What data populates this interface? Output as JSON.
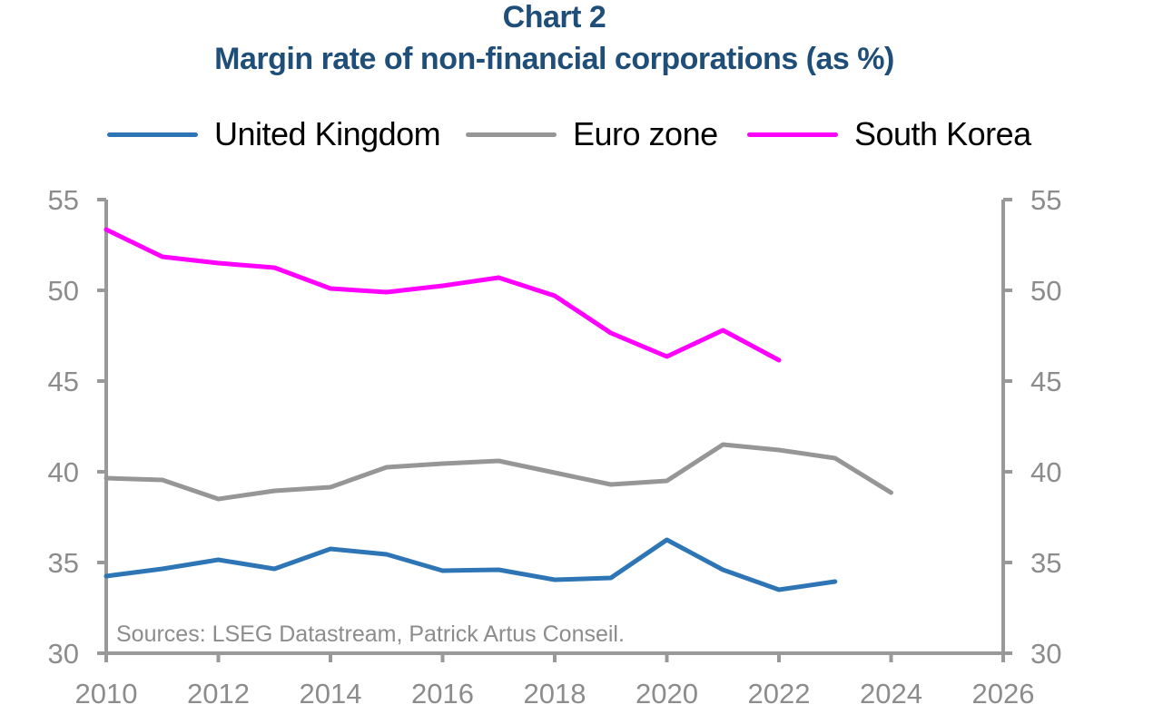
{
  "chart_data": {
    "type": "line",
    "title": "Chart 2",
    "subtitle": "Margin rate of non-financial corporations (as %)",
    "xlabel": "",
    "ylabel": "",
    "xlim": [
      2010,
      2026
    ],
    "ylim": [
      30,
      55
    ],
    "x_ticks": [
      2010,
      2012,
      2014,
      2016,
      2018,
      2020,
      2022,
      2024,
      2026
    ],
    "y_ticks": [
      30,
      35,
      40,
      45,
      50,
      55
    ],
    "y_axis_both_sides": true,
    "grid": false,
    "legend_position": "top",
    "source_note": "Sources: LSEG Datastream, Patrick Artus Conseil.",
    "series": [
      {
        "name": "United Kingdom",
        "color": "#2e75b6",
        "x": [
          2010,
          2011,
          2012,
          2013,
          2014,
          2015,
          2016,
          2017,
          2018,
          2019,
          2020,
          2021,
          2022,
          2023
        ],
        "values": [
          34.25,
          34.65,
          35.15,
          34.65,
          35.75,
          35.45,
          34.55,
          34.6,
          34.05,
          34.15,
          36.25,
          34.6,
          33.5,
          33.95
        ]
      },
      {
        "name": "Euro zone",
        "color": "#969696",
        "x": [
          2010,
          2011,
          2012,
          2013,
          2014,
          2015,
          2016,
          2017,
          2018,
          2019,
          2020,
          2021,
          2022,
          2023,
          2024
        ],
        "values": [
          39.65,
          39.55,
          38.5,
          38.95,
          39.15,
          40.25,
          40.45,
          40.6,
          39.95,
          39.3,
          39.5,
          41.5,
          41.2,
          40.75,
          38.85
        ]
      },
      {
        "name": "South Korea",
        "color": "#ff00ff",
        "x": [
          2010,
          2011,
          2012,
          2013,
          2014,
          2015,
          2016,
          2017,
          2018,
          2019,
          2020,
          2021,
          2022
        ],
        "values": [
          53.35,
          51.85,
          51.5,
          51.25,
          50.1,
          49.9,
          50.25,
          50.7,
          49.7,
          47.65,
          46.35,
          47.8,
          46.15
        ]
      }
    ]
  }
}
